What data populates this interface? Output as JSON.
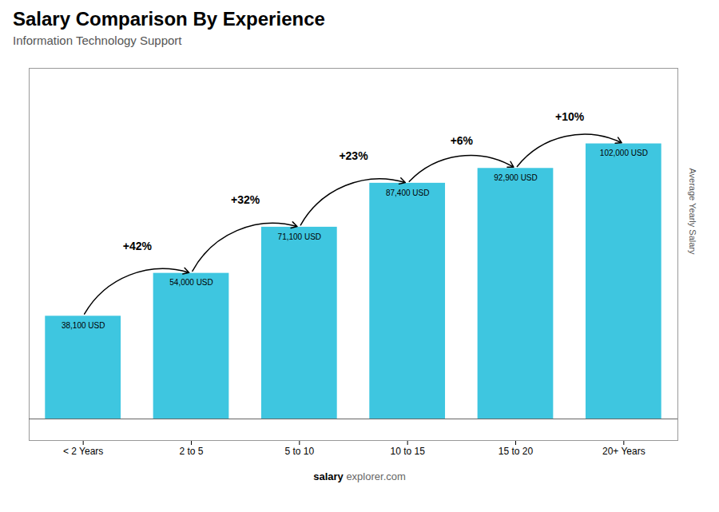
{
  "chart_data": {
    "type": "bar",
    "title": "Salary Comparison By Experience",
    "subtitle": "Information Technology Support",
    "categories": [
      "< 2 Years",
      "2 to 5",
      "5 to 10",
      "10 to 15",
      "15 to 20",
      "20+ Years"
    ],
    "values": [
      38100,
      54000,
      71100,
      87400,
      92900,
      102000
    ],
    "value_labels": [
      "38,100 USD",
      "54,000 USD",
      "71,100 USD",
      "87,400 USD",
      "92,900 USD",
      "102,000 USD"
    ],
    "data_labels": true,
    "color": "#3ec6e0",
    "ylabel": "Average Yearly Salary",
    "ylim": [
      -8000,
      130000
    ],
    "yticks": [],
    "tick_labels": "x",
    "grid": false,
    "annotations": [
      "+42%",
      "+32%",
      "+23%",
      "+6%",
      "+10%"
    ],
    "footer": [
      "salary",
      "explorer.com"
    ]
  }
}
